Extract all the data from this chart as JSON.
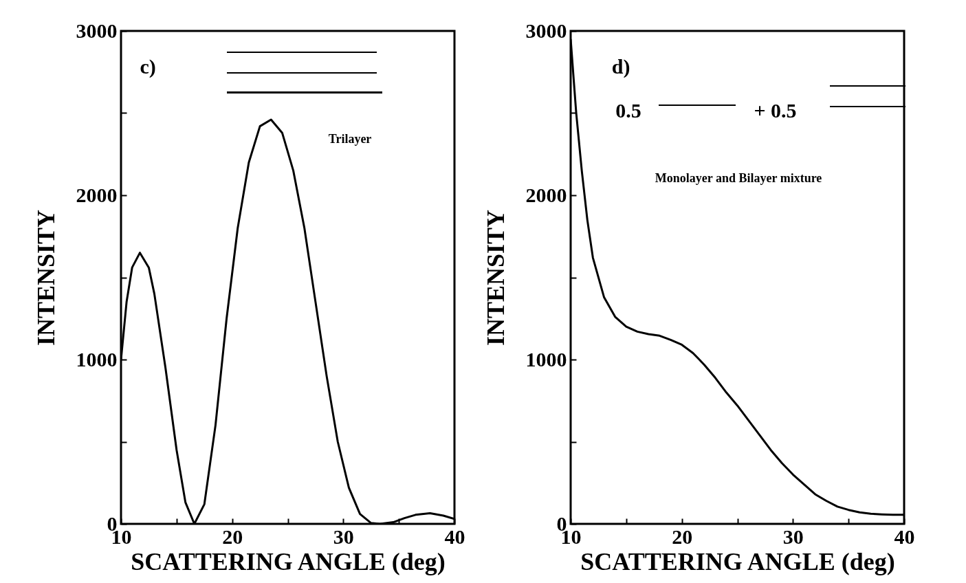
{
  "chart_data": [
    {
      "type": "line",
      "xlabel": "SCATTERING ANGLE (deg)",
      "ylabel": "INTENSITY",
      "annotations": [
        "c)",
        "Trilayer"
      ],
      "x": [
        10,
        10.5,
        11,
        11.7,
        12.5,
        13,
        14,
        15,
        15.8,
        16.6,
        17.5,
        18.5,
        19.5,
        20.5,
        21.5,
        22.5,
        23.5,
        24.5,
        25.5,
        26.5,
        27.5,
        28.5,
        29.5,
        30.5,
        31.5,
        32.5,
        33.3,
        34.5,
        35.5,
        36.5,
        37.8,
        39,
        40
      ],
      "series": [
        {
          "color": "#000000",
          "values": [
            1000,
            1350,
            1560,
            1650,
            1560,
            1400,
            950,
            450,
            130,
            0,
            120,
            600,
            1250,
            1800,
            2200,
            2420,
            2460,
            2380,
            2150,
            1800,
            1350,
            900,
            500,
            220,
            60,
            5,
            0,
            10,
            35,
            55,
            65,
            50,
            30
          ]
        }
      ],
      "xlim": [
        10,
        40
      ],
      "xticks": [
        10,
        {
          "value": 15,
          "label": null
        },
        20,
        {
          "value": 25,
          "label": null
        },
        30,
        {
          "value": 35,
          "label": null
        },
        40
      ],
      "ylim": [
        0,
        3000
      ],
      "yticks": [
        0,
        {
          "value": 500,
          "label": null
        },
        1000,
        {
          "value": 1500,
          "label": null
        },
        2000,
        {
          "value": 2500,
          "label": null
        },
        3000
      ],
      "grid": false,
      "legend": false
    },
    {
      "type": "line",
      "xlabel": "SCATTERING ANGLE (deg)",
      "ylabel": "INTENSITY",
      "annotations": [
        "d)",
        "0.5",
        "+ 0.5",
        "Monolayer and Bilayer mixture"
      ],
      "x": [
        10,
        10.5,
        11,
        11.5,
        12,
        13,
        14,
        15,
        16,
        17,
        18,
        19,
        20,
        21,
        22,
        23,
        24,
        25,
        26,
        27,
        28,
        29,
        30,
        31,
        32,
        33,
        34,
        35,
        36,
        37,
        38,
        39,
        40
      ],
      "series": [
        {
          "color": "#000000",
          "values": [
            2950,
            2500,
            2150,
            1850,
            1620,
            1380,
            1260,
            1200,
            1170,
            1155,
            1145,
            1120,
            1090,
            1040,
            970,
            890,
            800,
            720,
            630,
            540,
            450,
            370,
            300,
            240,
            180,
            140,
            105,
            85,
            70,
            62,
            58,
            55,
            55
          ]
        }
      ],
      "xlim": [
        10,
        40
      ],
      "xticks": [
        10,
        {
          "value": 15,
          "label": null
        },
        20,
        {
          "value": 25,
          "label": null
        },
        30,
        {
          "value": 35,
          "label": null
        },
        40
      ],
      "ylim": [
        0,
        3000
      ],
      "yticks": [
        0,
        {
          "value": 500,
          "label": null
        },
        1000,
        {
          "value": 1500,
          "label": null
        },
        2000,
        {
          "value": 2500,
          "label": null
        },
        3000
      ],
      "grid": false,
      "legend": false
    }
  ]
}
